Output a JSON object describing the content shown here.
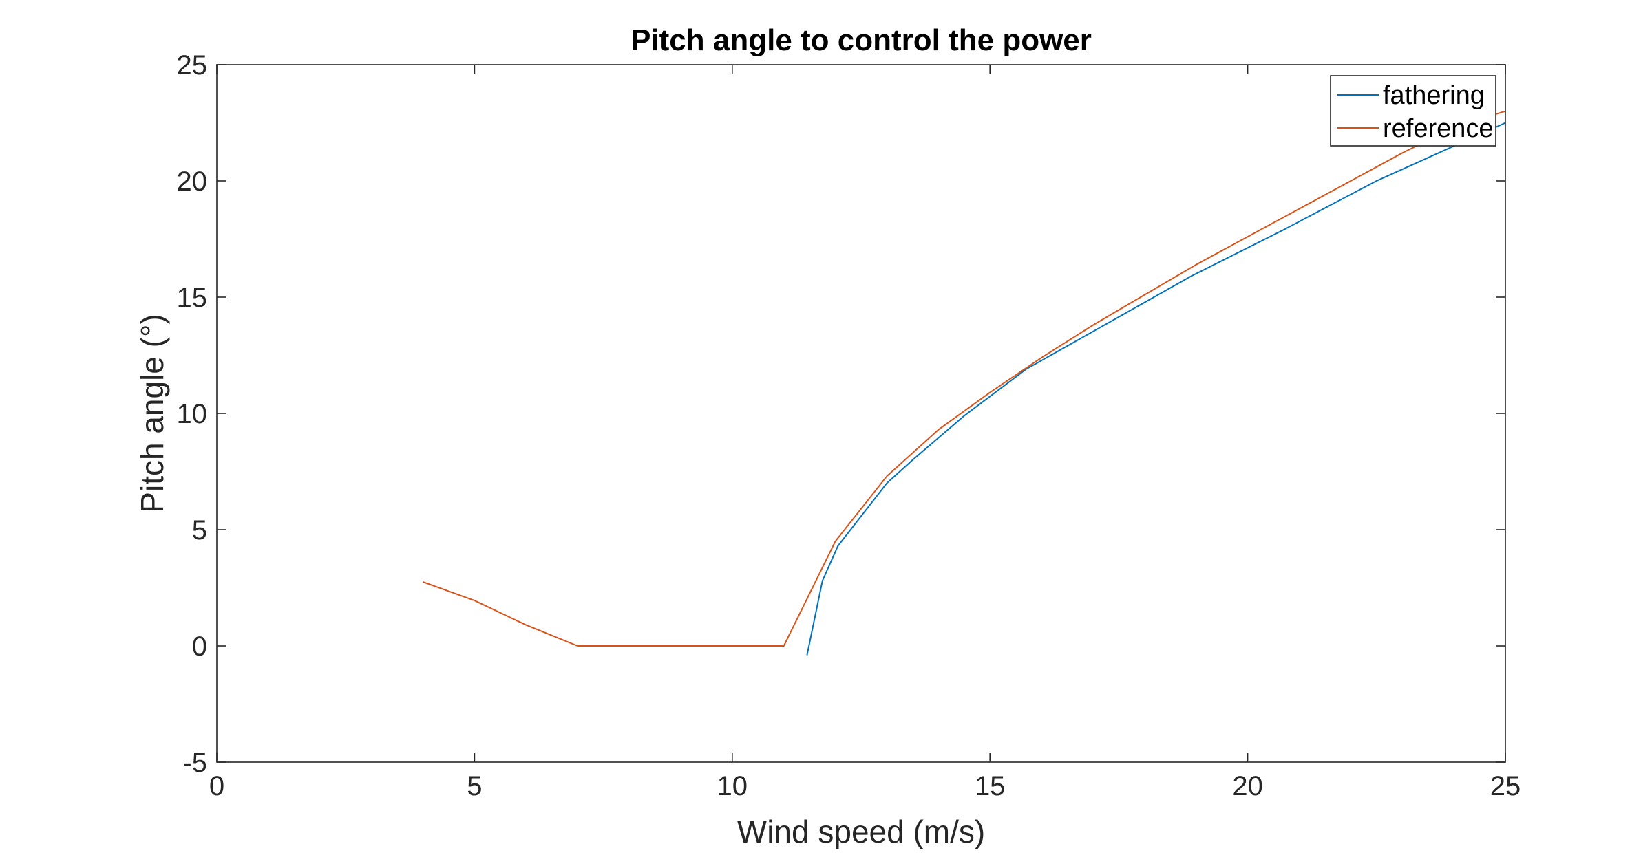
{
  "chart_data": {
    "type": "line",
    "title": "Pitch angle to control the power",
    "xlabel": "Wind speed (m/s)",
    "ylabel": "Pitch angle (°)",
    "xlim": [
      0,
      25
    ],
    "ylim": [
      -5,
      25
    ],
    "xticks": [
      0,
      5,
      10,
      15,
      20,
      25
    ],
    "yticks": [
      -5,
      0,
      5,
      10,
      15,
      20,
      25
    ],
    "xtick_labels": [
      "0",
      "5",
      "10",
      "15",
      "20",
      "25"
    ],
    "ytick_labels": [
      "-5",
      "0",
      "5",
      "10",
      "15",
      "20",
      "25"
    ],
    "grid": false,
    "legend_position": "top-right",
    "series": [
      {
        "name": "fathering",
        "color": "#0072BD",
        "x": [
          11.45,
          11.75,
          12.05,
          13.0,
          13.5,
          14.5,
          15.7,
          17.3,
          18.9,
          20.7,
          22.5,
          24.3,
          25.0
        ],
        "y": [
          -0.4,
          2.8,
          4.3,
          7.0,
          8.0,
          9.9,
          11.9,
          13.9,
          15.9,
          17.9,
          20.0,
          21.8,
          22.5
        ]
      },
      {
        "name": "reference",
        "color": "#D95319",
        "x": [
          4,
          5,
          6,
          7,
          8,
          9,
          10,
          11,
          12,
          13,
          14,
          15,
          16,
          17,
          18,
          19,
          20,
          21,
          22,
          23,
          24,
          25
        ],
        "y": [
          2.75,
          1.95,
          0.9,
          0.0,
          0.0,
          0.0,
          0.0,
          0.0,
          4.5,
          7.3,
          9.3,
          10.9,
          12.4,
          13.8,
          15.1,
          16.4,
          17.6,
          18.8,
          20.0,
          21.2,
          22.3,
          23.0
        ]
      }
    ]
  }
}
